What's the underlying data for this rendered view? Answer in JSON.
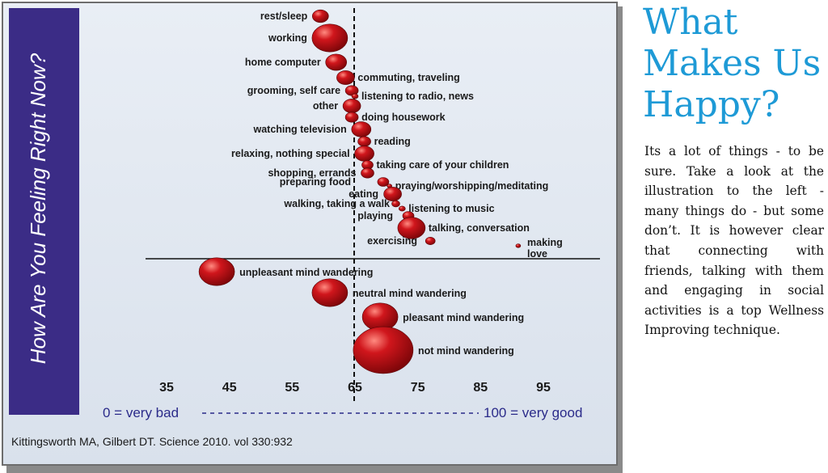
{
  "chart_data": {
    "type": "scatter",
    "ylabel": "How Are You Feeling Right Now?",
    "xlim": [
      35,
      95
    ],
    "xticks": [
      35,
      45,
      55,
      65,
      75,
      85,
      95
    ],
    "scale_caption": {
      "left": "0 = very bad",
      "right": "100 = very good"
    },
    "reference_line": 65,
    "activities": [
      {
        "label": "rest/sleep",
        "x": 59.5,
        "size": 1.0
      },
      {
        "label": "working",
        "x": 61,
        "size": 2.2
      },
      {
        "label": "home computer",
        "x": 62,
        "size": 1.3
      },
      {
        "label": "commuting, traveling",
        "x": 63.5,
        "size": 1.1
      },
      {
        "label": "grooming, self care",
        "x": 64.5,
        "size": 0.8
      },
      {
        "label": "listening to radio, news",
        "x": 65,
        "size": 0.4
      },
      {
        "label": "other",
        "x": 64.5,
        "size": 1.1
      },
      {
        "label": "doing housework",
        "x": 64.5,
        "size": 0.8
      },
      {
        "label": "watching television",
        "x": 66,
        "size": 1.2
      },
      {
        "label": "reading",
        "x": 66.5,
        "size": 0.8
      },
      {
        "label": "relaxing, nothing special",
        "x": 66.5,
        "size": 1.2
      },
      {
        "label": "taking care of your children",
        "x": 67,
        "size": 0.7
      },
      {
        "label": "shopping, errands",
        "x": 67,
        "size": 0.8
      },
      {
        "label": "preparing food",
        "x": 69.5,
        "size": 0.7
      },
      {
        "label": "praying/worshipping/meditating",
        "x": 70.5,
        "size": 0.3
      },
      {
        "label": "eating",
        "x": 71,
        "size": 1.1
      },
      {
        "label": "walking, taking a walk",
        "x": 71.5,
        "size": 0.5
      },
      {
        "label": "listening to music",
        "x": 72.5,
        "size": 0.4
      },
      {
        "label": "playing",
        "x": 73.5,
        "size": 0.7
      },
      {
        "label": "talking, conversation",
        "x": 74,
        "size": 1.7
      },
      {
        "label": "exercising",
        "x": 77,
        "size": 0.6
      },
      {
        "label": "making love",
        "x": 91,
        "size": 0.3
      }
    ],
    "mind_wandering": [
      {
        "label": "unpleasant mind wandering",
        "x": 43,
        "size": 2.2
      },
      {
        "label": "neutral mind wandering",
        "x": 61,
        "size": 2.2
      },
      {
        "label": "pleasant mind wandering",
        "x": 69,
        "size": 2.2
      },
      {
        "label": "not mind wandering",
        "x": 69.5,
        "size": 3.7
      }
    ],
    "colors": {
      "bubble": "#c0141a",
      "sidebar": "#3b2c86",
      "background": "#e3e9f1"
    }
  },
  "citation": "Kittingsworth MA, Gilbert DT. Science 2010. vol 330:932",
  "side": {
    "title": "What Makes Us Happy?",
    "body": "Its a lot of things - to be sure. Take a look at the illustration to the left - many things do - but some don’t. It is however clear that connecting with friends, talking with them and engaging in social activities is a top Wellness Improving technique."
  }
}
